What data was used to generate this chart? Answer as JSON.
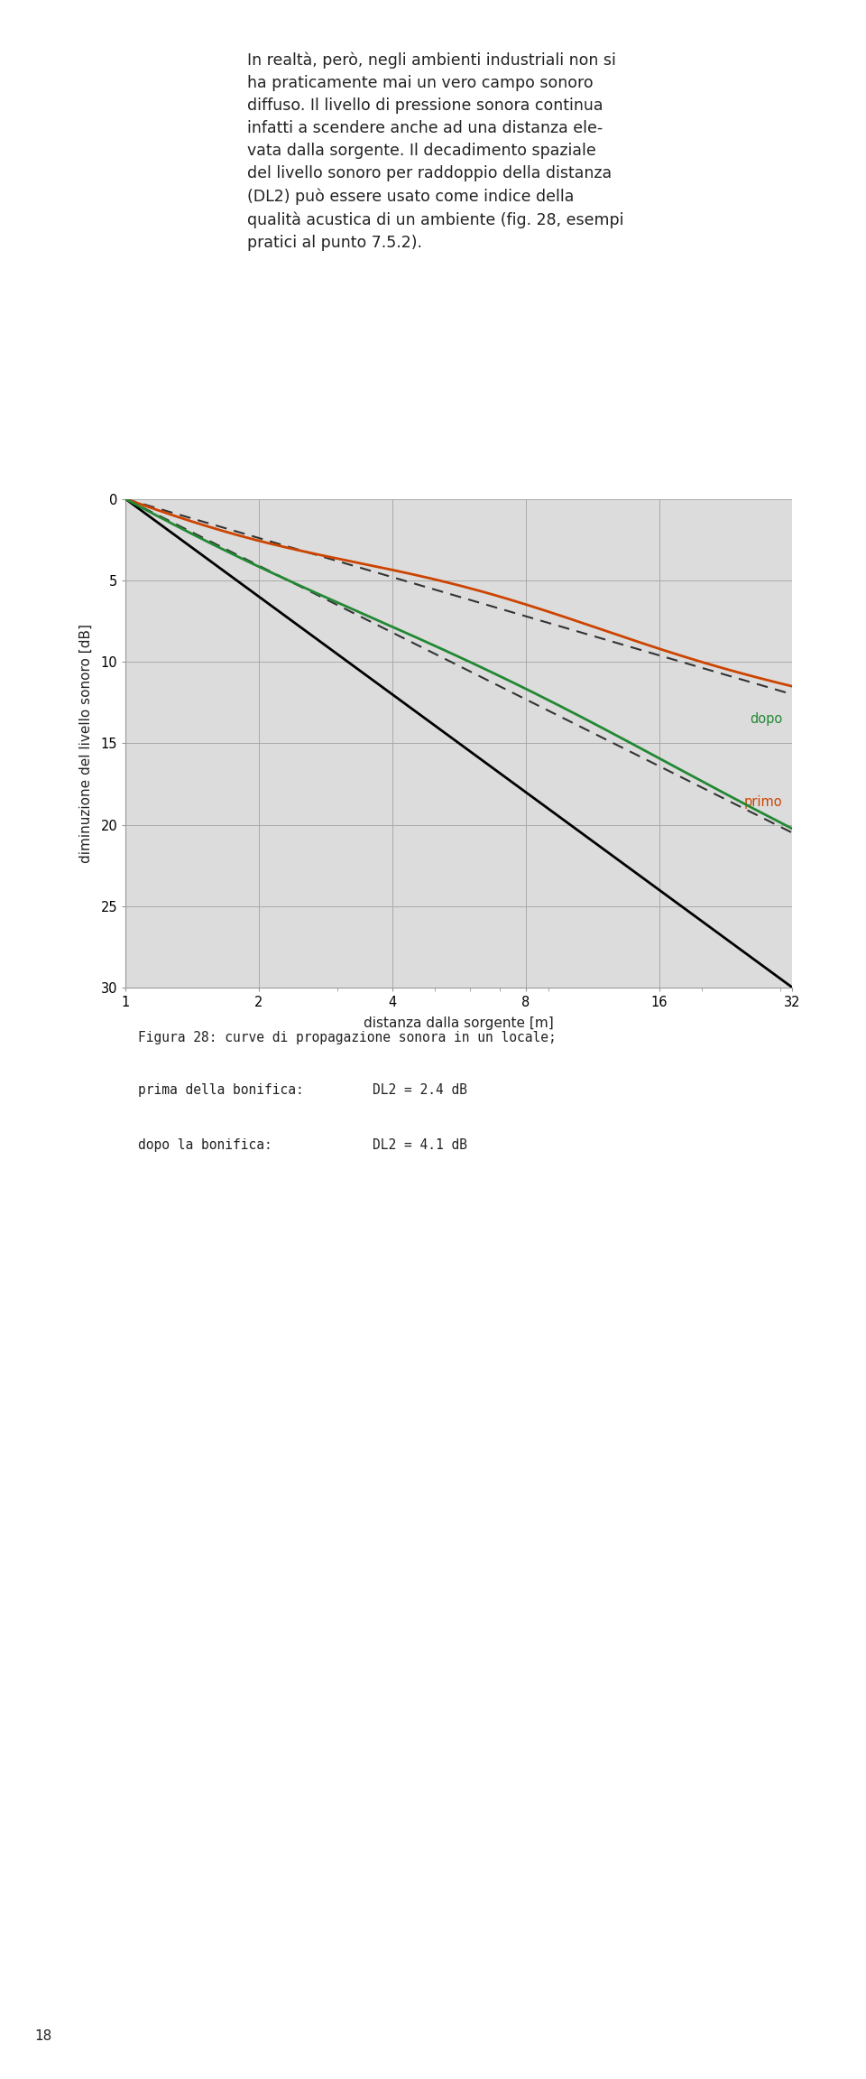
{
  "xlabel": "distanza dalla sorgente [m]",
  "ylabel": "diminuzione del livello sonoro [dB]",
  "xticks": [
    1,
    2,
    4,
    8,
    16,
    32
  ],
  "yticks": [
    0,
    5,
    10,
    15,
    20,
    25,
    30
  ],
  "ylim": [
    0,
    30
  ],
  "xlim": [
    1,
    32
  ],
  "background_color": "#dcdcdc",
  "text_color": "#222222",
  "annotation_primo": "primo",
  "annotation_dopo": "dopo",
  "caption_bg": "#d0dce8",
  "primo_color": "#cc4400",
  "dopo_color": "#228833",
  "free_field_color": "#000000",
  "dashed_color": "#333333",
  "page_number": "18",
  "header_text": "In realtà, però, negli ambienti industriali non si\nha praticamente mai un vero campo sonoro\ndiffuso. Il livello di pressione sonora continua\ninfatti a scendere anche ad una distanza ele-\nvata dalla sorgente. Il decadimento spaziale\ndel livello sonoro per raddoppio della distanza\n(DL2) può essere usato come indice della\nqualità acustica di un ambiente (fig. 28, esempi\npratici al punto 7.5.2).",
  "caption_fig": "Figura 28: curve di propagazione sonora in un locale;",
  "caption_prima": "prima della bonifica:",
  "caption_prima_val": "DL2 = 2.4 dB",
  "caption_dopo": "dopo la bonifica:",
  "caption_dopo_val": "DL2 = 4.1 dB"
}
